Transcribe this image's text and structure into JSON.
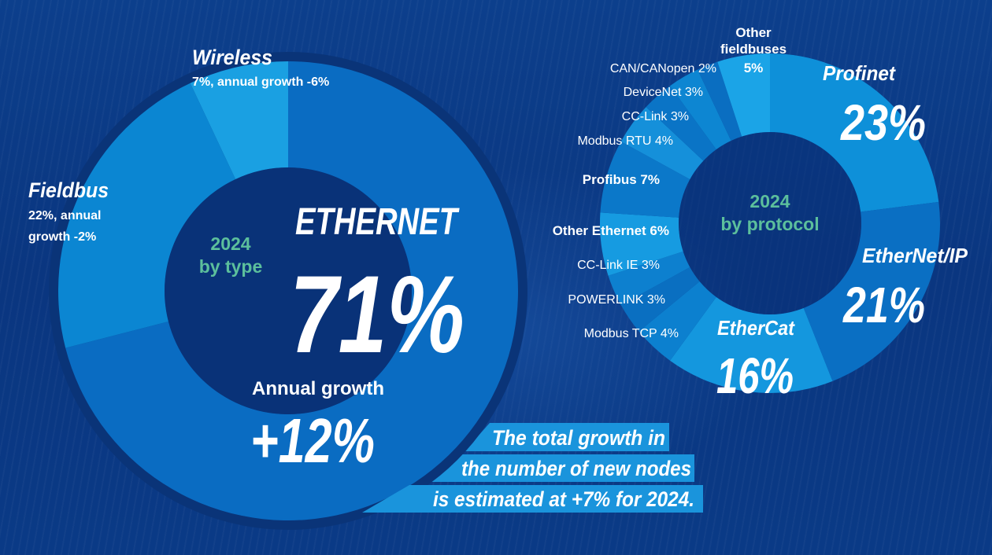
{
  "chart_data": [
    {
      "type": "pie",
      "variant": "donut",
      "center_label": [
        "2024",
        "by type"
      ],
      "categories": [
        "Ethernet",
        "Fieldbus",
        "Wireless"
      ],
      "values": [
        71,
        22,
        7
      ],
      "annual_growth": [
        12,
        -2,
        -6
      ],
      "colors": [
        "#0a6cc2",
        "#0b86d2",
        "#1aa0e2"
      ],
      "labels": {
        "ethernet_name": "ETHERNET",
        "ethernet_value": "71%",
        "ethernet_growth_label": "Annual growth",
        "ethernet_growth_value": "+12%",
        "fieldbus_name": "Fieldbus",
        "fieldbus_line1": "22%, annual",
        "fieldbus_line2": "growth -2%",
        "wireless_name": "Wireless",
        "wireless_line": "7%, annual growth -6%"
      }
    },
    {
      "type": "pie",
      "variant": "donut",
      "center_label": [
        "2024",
        "by protocol"
      ],
      "categories": [
        "Profinet",
        "EtherNet/IP",
        "EtherCat",
        "Modbus TCP",
        "POWERLINK",
        "CC-Link IE",
        "Other Ethernet",
        "Profibus",
        "Modbus RTU",
        "CC-Link",
        "DeviceNet",
        "CAN/CANopen",
        "Other fieldbuses"
      ],
      "values": [
        23,
        21,
        16,
        4,
        3,
        3,
        6,
        7,
        4,
        3,
        3,
        2,
        5
      ],
      "colors": [
        "#0e90d9",
        "#0a6fc3",
        "#1497de",
        "#0c80cf",
        "#0a6fc1",
        "#0d80cf",
        "#169be1",
        "#0b78c9",
        "#1590da",
        "#0a74c6",
        "#0d86d2",
        "#0a6ec1",
        "#1ba4e7"
      ],
      "labels": {
        "profinet_name": "Profinet",
        "profinet_value": "23%",
        "ethernetip_name": "EtherNet/IP",
        "ethernetip_value": "21%",
        "ethercat_name": "EtherCat",
        "ethercat_value": "16%",
        "modbus_tcp": "Modbus TCP 4%",
        "powerlink": "POWERLINK 3%",
        "cclink_ie": "CC-Link IE 3%",
        "other_ethernet": "Other Ethernet 6%",
        "profibus": "Profibus 7%",
        "modbus_rtu": "Modbus RTU 4%",
        "cclink": "CC-Link 3%",
        "devicenet": "DeviceNet 3%",
        "can": "CAN/CANopen 2%",
        "other_fieldbuses_1": "Other",
        "other_fieldbuses_2": "fieldbuses",
        "other_fieldbuses_3": "5%"
      }
    }
  ],
  "banner": {
    "line1": "The total growth in",
    "line2": "the number of new nodes",
    "line3": "is estimated at +7% for 2024.",
    "color": "#1a94dc"
  }
}
